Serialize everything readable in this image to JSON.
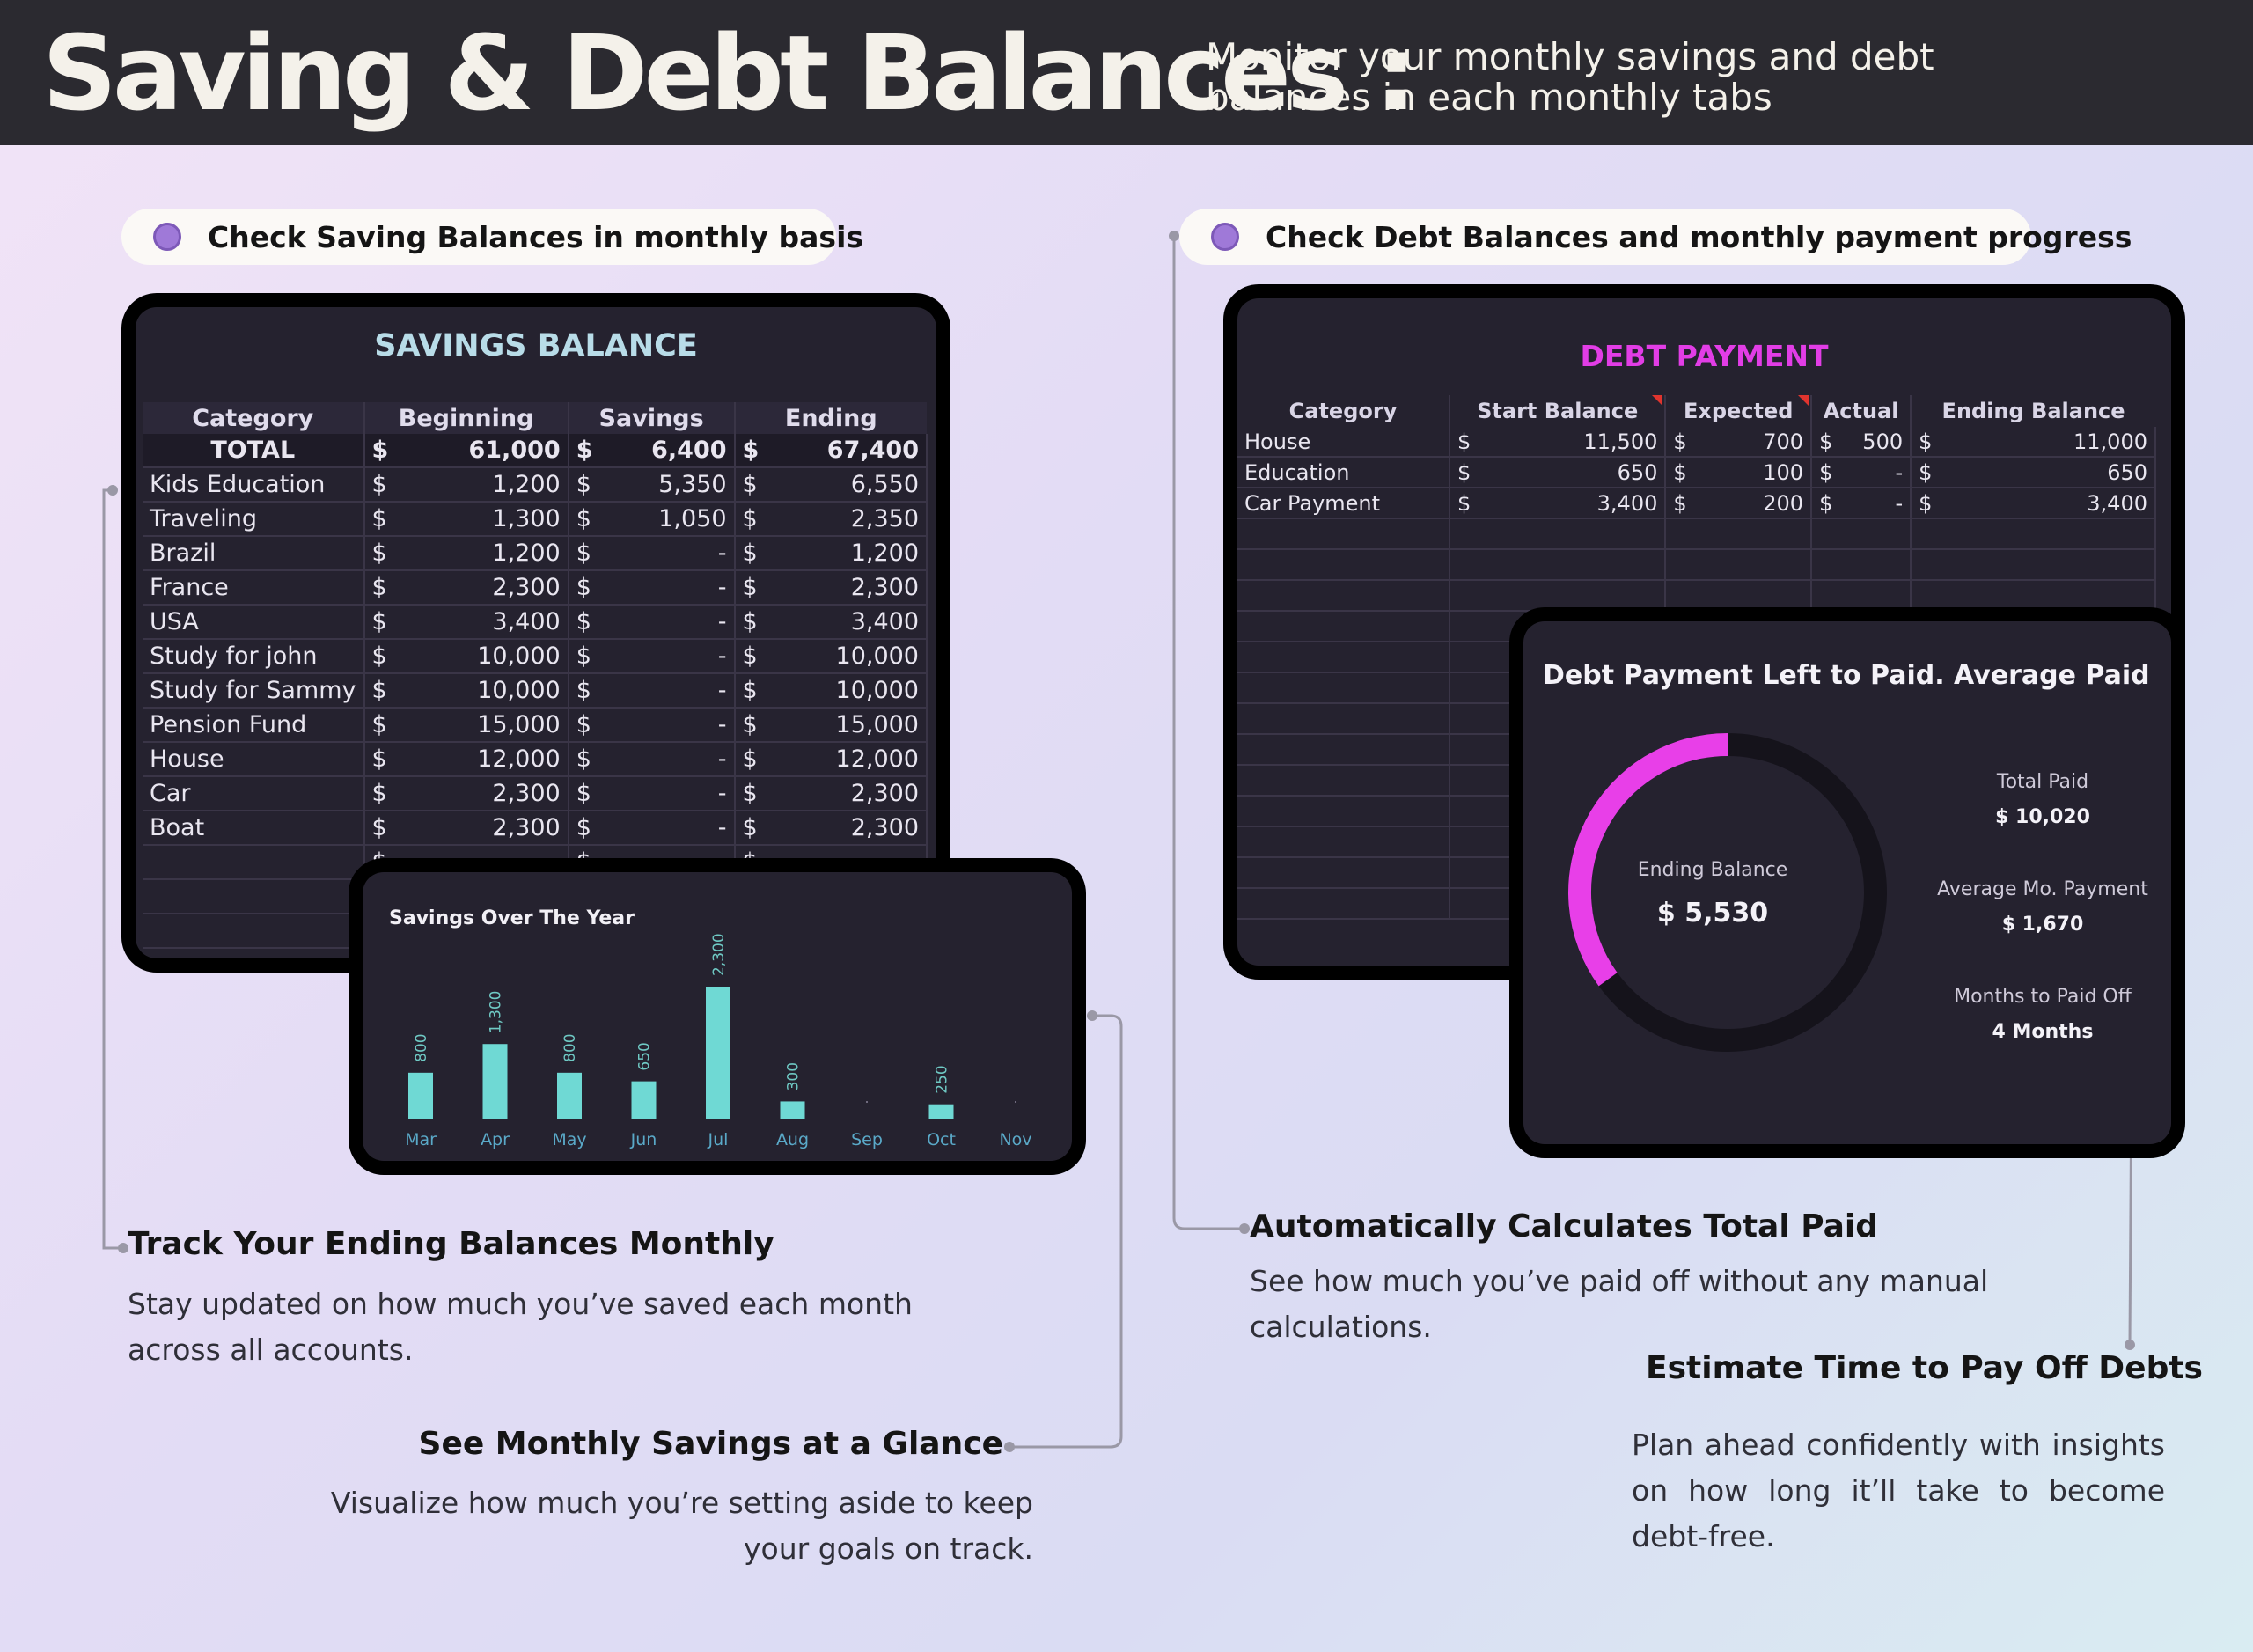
{
  "header": {
    "title": "Saving & Debt Balances :",
    "subtitle": "Monitor your monthly savings and debt balances in each monthly tabs"
  },
  "savings_pill": "Check Saving Balances in monthly basis",
  "debt_pill": "Check Debt Balances and monthly payment progress",
  "savings_table": {
    "title": "SAVINGS BALANCE",
    "currency": "$",
    "columns": [
      "Category",
      "Beginning",
      "Savings",
      "Ending"
    ],
    "total": {
      "label": "TOTAL",
      "beginning": "61,000",
      "savings": "6,400",
      "ending": "67,400"
    },
    "rows": [
      {
        "category": "Kids Education",
        "beginning": "1,200",
        "savings": "5,350",
        "ending": "6,550"
      },
      {
        "category": "Traveling",
        "beginning": "1,300",
        "savings": "1,050",
        "ending": "2,350"
      },
      {
        "category": "Brazil",
        "beginning": "1,200",
        "savings": "-",
        "ending": "1,200"
      },
      {
        "category": "France",
        "beginning": "2,300",
        "savings": "-",
        "ending": "2,300"
      },
      {
        "category": "USA",
        "beginning": "3,400",
        "savings": "-",
        "ending": "3,400"
      },
      {
        "category": "Study for john",
        "beginning": "10,000",
        "savings": "-",
        "ending": "10,000"
      },
      {
        "category": "Study for Sammy",
        "beginning": "10,000",
        "savings": "-",
        "ending": "10,000"
      },
      {
        "category": "Pension Fund",
        "beginning": "15,000",
        "savings": "-",
        "ending": "15,000"
      },
      {
        "category": "House",
        "beginning": "12,000",
        "savings": "-",
        "ending": "12,000"
      },
      {
        "category": "Car",
        "beginning": "2,300",
        "savings": "-",
        "ending": "2,300"
      },
      {
        "category": "Boat",
        "beginning": "2,300",
        "savings": "-",
        "ending": "2,300"
      },
      {
        "category": "",
        "beginning": "",
        "savings": "",
        "ending": "-"
      }
    ]
  },
  "chart_data": [
    {
      "type": "bar",
      "title": "Savings Over The Year",
      "categories": [
        "Mar",
        "Apr",
        "May",
        "Jun",
        "Jul",
        "Aug",
        "Sep",
        "Oct",
        "Nov"
      ],
      "values": [
        800,
        1300,
        800,
        650,
        2300,
        300,
        0,
        250,
        0
      ],
      "data_labels": [
        "800",
        "1,300",
        "800",
        "650",
        "2,300",
        "300",
        "",
        "250",
        ""
      ],
      "color": "#6fd9d4"
    },
    {
      "type": "pie",
      "title": "Debt  Payment Left to Paid. Average Paid",
      "center_label": "Ending Balance",
      "center_value": "$ 5,530",
      "paid_fraction": 0.35,
      "colors": {
        "paid": "#e83fe8",
        "remaining": "#15131b"
      }
    }
  ],
  "debt_table": {
    "title": "DEBT PAYMENT",
    "currency": "$",
    "columns": [
      "Category",
      "Start Balance",
      "Expected",
      "Actual",
      "Ending Balance"
    ],
    "rows": [
      {
        "category": "House",
        "start": "11,500",
        "expected": "700",
        "actual": "500",
        "ending": "11,000"
      },
      {
        "category": "Education",
        "start": "650",
        "expected": "100",
        "actual": "-",
        "ending": "650"
      },
      {
        "category": "Car Payment",
        "start": "3,400",
        "expected": "200",
        "actual": "-",
        "ending": "3,400"
      }
    ]
  },
  "debt_stats": {
    "total_paid_label": "Total Paid",
    "total_paid_value": "$ 10,020",
    "avg_label": "Average Mo. Payment",
    "avg_value": "$ 1,670",
    "months_label": "Months to Paid Off",
    "months_value": "4 Months"
  },
  "captions": {
    "track_title": "Track Your Ending Balances Monthly",
    "track_text": "Stay updated on how much you’ve saved each month across all accounts.",
    "glance_title": "See Monthly Savings at a Glance",
    "glance_text": "Visualize how much you’re setting aside to keep your goals on track.",
    "auto_title": "Automatically Calculates Total Paid",
    "auto_text": "See how much you’ve paid off without any manual calculations.",
    "estimate_title": "Estimate Time to Pay Off Debts",
    "estimate_text": "Plan ahead confidently with insights on how long it’ll take to become debt-free."
  }
}
